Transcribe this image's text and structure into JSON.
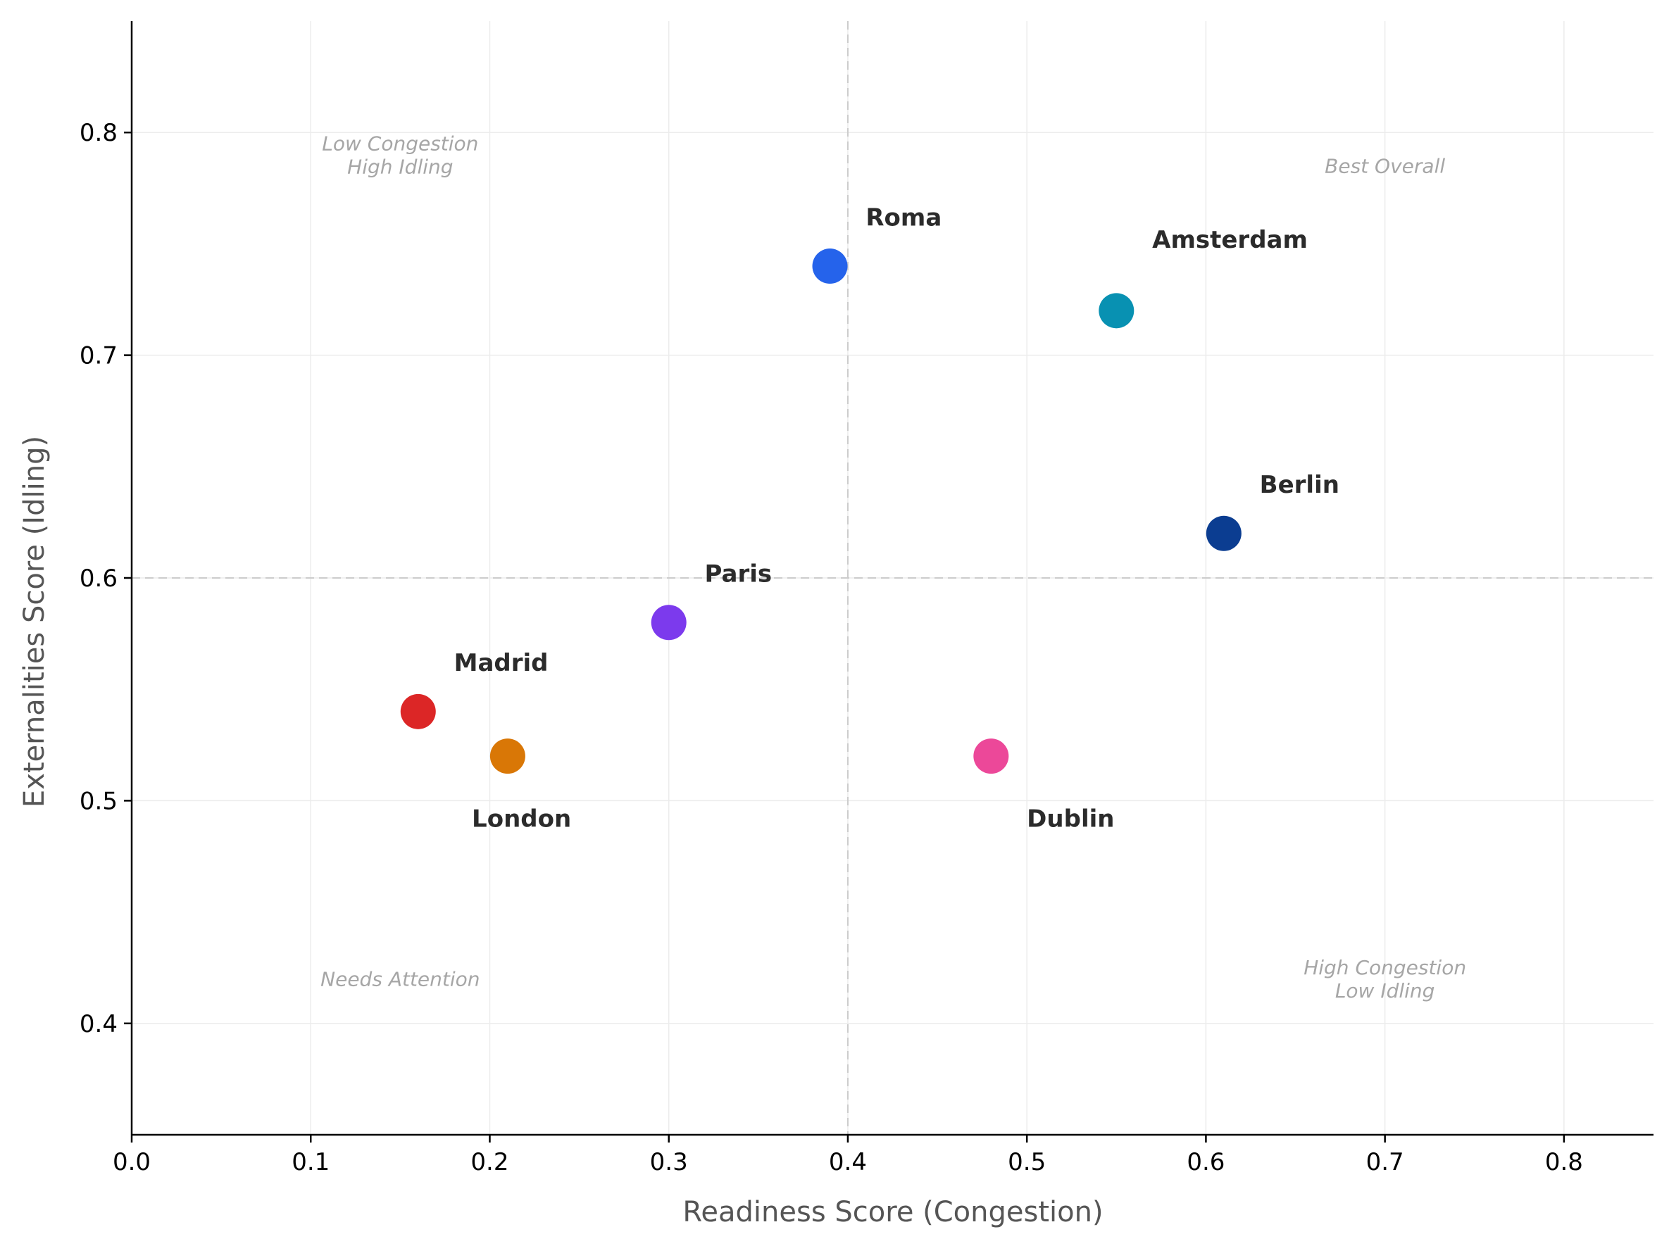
{
  "chart_data": {
    "type": "scatter",
    "xlabel": "Readiness Score (Congestion)",
    "ylabel": "Externalities Score (Idling)",
    "xlim": [
      0.0,
      0.85
    ],
    "ylim": [
      0.35,
      0.85
    ],
    "xticks": [
      "0.0",
      "0.1",
      "0.2",
      "0.3",
      "0.4",
      "0.5",
      "0.6",
      "0.7",
      "0.8"
    ],
    "yticks": [
      "0.4",
      "0.5",
      "0.6",
      "0.7",
      "0.8"
    ],
    "grid": true,
    "reference_lines": {
      "x": 0.4,
      "y": 0.6
    },
    "points": [
      {
        "name": "Roma",
        "x": 0.39,
        "y": 0.74,
        "color": "#2563eb",
        "label_x": 0.41,
        "label_y": 0.762
      },
      {
        "name": "Amsterdam",
        "x": 0.55,
        "y": 0.72,
        "color": "#0891b2",
        "label_x": 0.57,
        "label_y": 0.752
      },
      {
        "name": "Berlin",
        "x": 0.61,
        "y": 0.62,
        "color": "#0b3d91",
        "label_x": 0.63,
        "label_y": 0.642
      },
      {
        "name": "Paris",
        "x": 0.3,
        "y": 0.58,
        "color": "#7c3aed",
        "label_x": 0.32,
        "label_y": 0.602
      },
      {
        "name": "Madrid",
        "x": 0.16,
        "y": 0.54,
        "color": "#dc2626",
        "label_x": 0.18,
        "label_y": 0.562
      },
      {
        "name": "London",
        "x": 0.21,
        "y": 0.52,
        "color": "#d97706",
        "label_x": 0.19,
        "label_y": 0.492
      },
      {
        "name": "Dublin",
        "x": 0.48,
        "y": 0.52,
        "color": "#ec4899",
        "label_x": 0.5,
        "label_y": 0.492
      }
    ],
    "quadrant_labels": [
      {
        "lines": [
          "Low Congestion",
          "High Idling"
        ],
        "x": 0.15,
        "y": 0.79
      },
      {
        "lines": [
          "Best Overall"
        ],
        "x": 0.7,
        "y": 0.785
      },
      {
        "lines": [
          "Needs Attention"
        ],
        "x": 0.15,
        "y": 0.42
      },
      {
        "lines": [
          "High Congestion",
          "Low Idling"
        ],
        "x": 0.7,
        "y": 0.42
      }
    ]
  }
}
